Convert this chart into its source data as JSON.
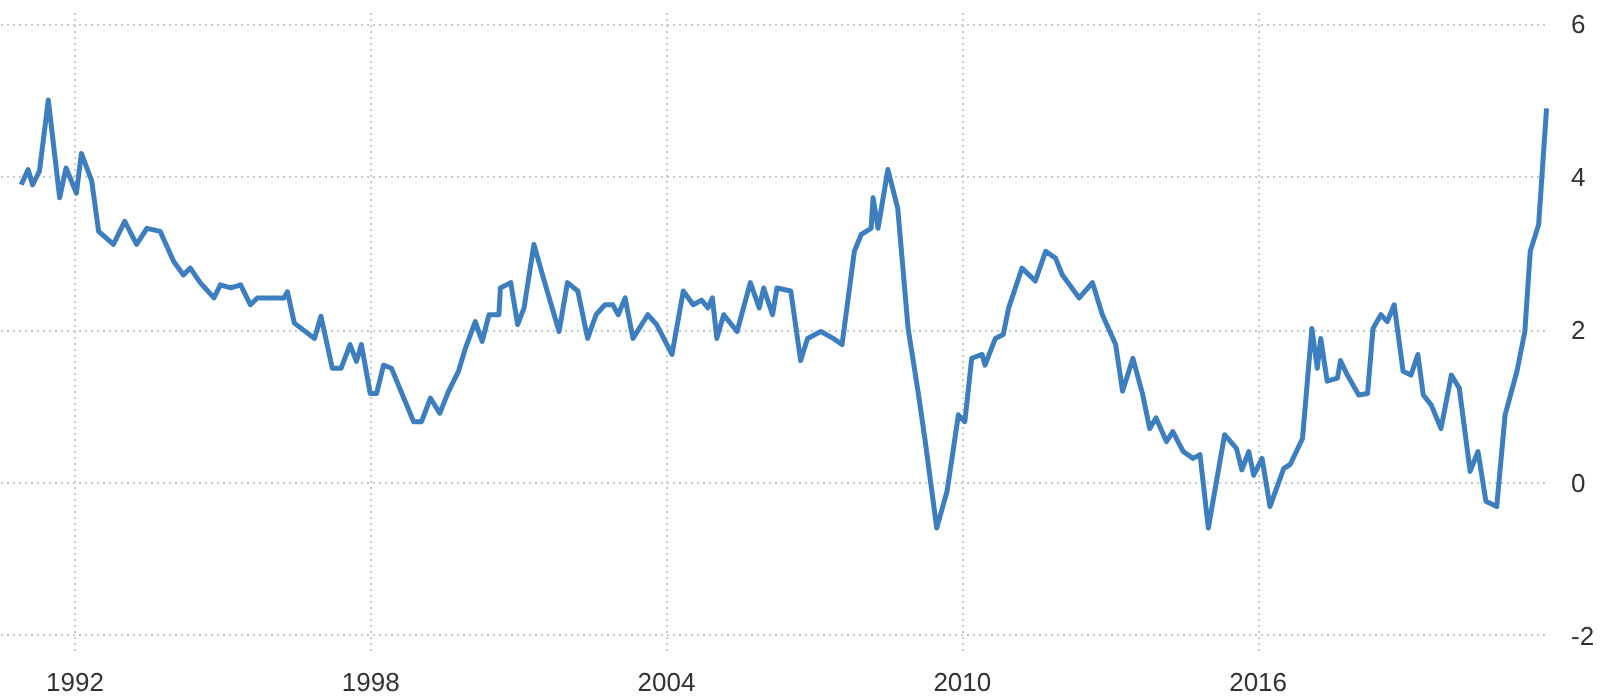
{
  "chart_data": {
    "type": "line",
    "xlim": [
      1990.5,
      2021.9
    ],
    "ylim": [
      -2.2,
      6.2
    ],
    "xticks": [
      1992,
      1998,
      2004,
      2010,
      2016
    ],
    "yticks": [
      -2,
      0,
      2,
      4,
      6
    ],
    "grid": true,
    "marker": "none",
    "line_style": "solid",
    "x": [
      1990.91,
      1991.05,
      1991.14,
      1991.28,
      1991.46,
      1991.69,
      1991.82,
      1992.03,
      1992.13,
      1992.34,
      1992.48,
      1992.78,
      1993.01,
      1993.25,
      1993.46,
      1993.73,
      1994.0,
      1994.2,
      1994.34,
      1994.54,
      1994.82,
      1994.95,
      1995.16,
      1995.36,
      1995.56,
      1995.7,
      1996.24,
      1996.31,
      1996.45,
      1996.86,
      1996.99,
      1997.22,
      1997.4,
      1997.58,
      1997.71,
      1997.81,
      1997.99,
      1998.12,
      1998.26,
      1998.42,
      1998.67,
      1998.87,
      1999.03,
      1999.21,
      1999.4,
      1999.58,
      1999.78,
      1999.92,
      2000.12,
      2000.26,
      2000.4,
      2000.6,
      2000.63,
      2000.84,
      2000.98,
      2001.11,
      2001.31,
      2001.52,
      2001.82,
      2001.99,
      2002.2,
      2002.4,
      2002.57,
      2002.75,
      2002.91,
      2003.02,
      2003.16,
      2003.32,
      2003.62,
      2003.8,
      2004.11,
      2004.34,
      2004.54,
      2004.71,
      2004.84,
      2004.93,
      2005.02,
      2005.16,
      2005.43,
      2005.7,
      2005.88,
      2005.97,
      2006.15,
      2006.24,
      2006.52,
      2006.72,
      2006.86,
      2007.13,
      2007.38,
      2007.56,
      2007.81,
      2007.95,
      2008.15,
      2008.19,
      2008.29,
      2008.49,
      2008.69,
      2008.9,
      2009.1,
      2009.24,
      2009.48,
      2009.69,
      2009.92,
      2010.05,
      2010.19,
      2010.4,
      2010.46,
      2010.67,
      2010.83,
      2010.94,
      2011.21,
      2011.48,
      2011.69,
      2011.89,
      2012.03,
      2012.37,
      2012.64,
      2012.84,
      2013.11,
      2013.25,
      2013.46,
      2013.66,
      2013.8,
      2013.93,
      2014.14,
      2014.27,
      2014.48,
      2014.68,
      2014.82,
      2014.99,
      2015.32,
      2015.56,
      2015.67,
      2015.81,
      2015.91,
      2016.08,
      2016.24,
      2016.52,
      2016.65,
      2016.9,
      2017.09,
      2017.2,
      2017.27,
      2017.4,
      2017.61,
      2017.67,
      2017.81,
      2018.04,
      2018.22,
      2018.33,
      2018.49,
      2018.62,
      2018.76,
      2018.94,
      2019.1,
      2019.24,
      2019.35,
      2019.51,
      2019.71,
      2019.92,
      2020.08,
      2020.3,
      2020.46,
      2020.62,
      2020.84,
      2021.01,
      2021.25,
      2021.41,
      2021.52,
      2021.69,
      2021.85
    ],
    "series": [
      {
        "color": "#3d7ebf",
        "values": [
          3.9,
          4.1,
          3.9,
          4.08,
          5.01,
          3.73,
          4.12,
          3.79,
          4.31,
          3.95,
          3.29,
          3.12,
          3.42,
          3.12,
          3.33,
          3.29,
          2.9,
          2.72,
          2.81,
          2.62,
          2.42,
          2.59,
          2.55,
          2.59,
          2.33,
          2.42,
          2.42,
          2.5,
          2.09,
          1.89,
          2.18,
          1.5,
          1.5,
          1.81,
          1.59,
          1.81,
          1.17,
          1.17,
          1.54,
          1.5,
          1.11,
          0.8,
          0.8,
          1.11,
          0.91,
          1.2,
          1.46,
          1.76,
          2.11,
          1.85,
          2.2,
          2.2,
          2.55,
          2.62,
          2.07,
          2.29,
          3.12,
          2.64,
          1.98,
          2.62,
          2.51,
          1.89,
          2.2,
          2.33,
          2.33,
          2.2,
          2.42,
          1.89,
          2.2,
          2.07,
          1.68,
          2.51,
          2.33,
          2.39,
          2.29,
          2.42,
          1.89,
          2.2,
          1.98,
          2.62,
          2.29,
          2.55,
          2.2,
          2.55,
          2.51,
          1.6,
          1.89,
          1.98,
          1.89,
          1.81,
          3.03,
          3.25,
          3.33,
          3.73,
          3.33,
          4.1,
          3.59,
          2.02,
          1.2,
          0.58,
          -0.59,
          -0.11,
          0.89,
          0.8,
          1.63,
          1.68,
          1.54,
          1.89,
          1.94,
          2.29,
          2.81,
          2.64,
          3.03,
          2.94,
          2.72,
          2.42,
          2.62,
          2.2,
          1.81,
          1.2,
          1.63,
          1.15,
          0.71,
          0.85,
          0.54,
          0.67,
          0.41,
          0.32,
          0.37,
          -0.59,
          0.63,
          0.45,
          0.17,
          0.41,
          0.1,
          0.32,
          -0.31,
          0.19,
          0.24,
          0.58,
          2.02,
          1.5,
          1.89,
          1.33,
          1.37,
          1.6,
          1.41,
          1.15,
          1.17,
          2.02,
          2.2,
          2.11,
          2.33,
          1.46,
          1.41,
          1.68,
          1.15,
          1.02,
          0.71,
          1.41,
          1.24,
          0.15,
          0.41,
          -0.24,
          -0.31,
          0.89,
          1.46,
          1.98,
          3.03,
          3.38,
          4.9
        ]
      }
    ]
  }
}
